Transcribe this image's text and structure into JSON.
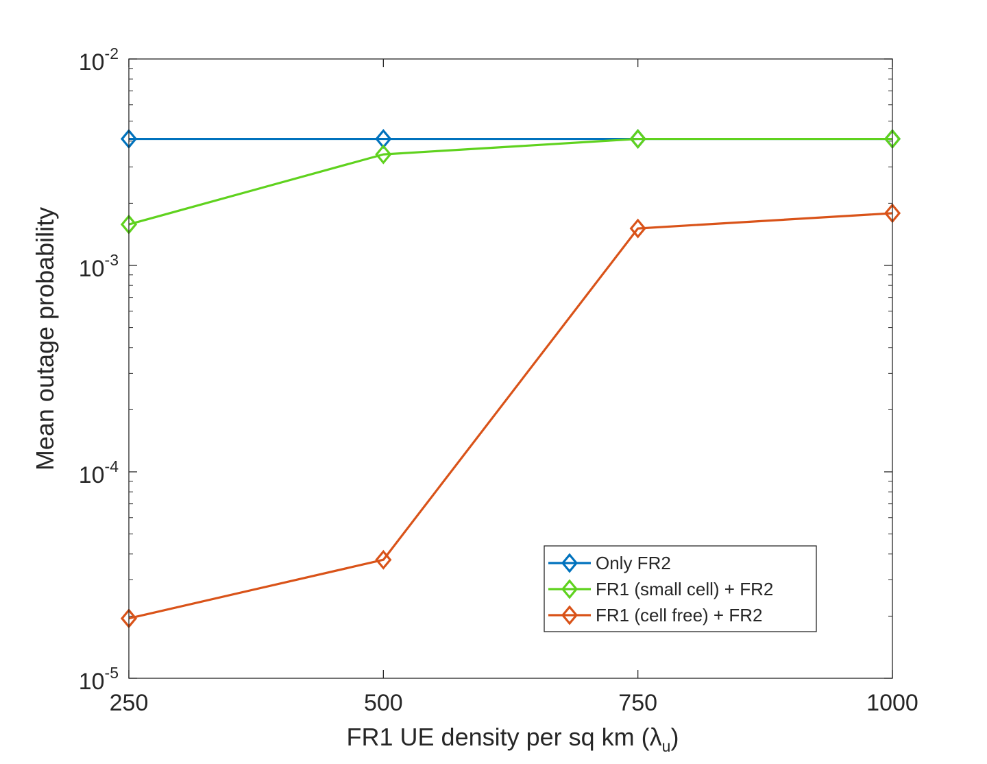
{
  "chart_data": {
    "type": "line",
    "title": "",
    "xlabel": "FR1 UE density per sq km (",
    "xlabel_symbol": "λ",
    "xlabel_subscript": "u",
    "xlabel_close": ")",
    "ylabel": "Mean outage probability",
    "x": [
      250,
      500,
      750,
      1000
    ],
    "x_tick_labels": [
      "250",
      "500",
      "750",
      "1000"
    ],
    "xlim": [
      250,
      1000
    ],
    "y_scale": "log",
    "ylim": [
      1e-05,
      0.01
    ],
    "y_ticks": [
      {
        "base": "10",
        "exponent": "-5",
        "value": 1e-05
      },
      {
        "base": "10",
        "exponent": "-4",
        "value": 0.0001
      },
      {
        "base": "10",
        "exponent": "-3",
        "value": 0.001
      },
      {
        "base": "10",
        "exponent": "-2",
        "value": 0.01
      }
    ],
    "grid": false,
    "box": true,
    "marker": "diamond",
    "legend_location": "bottom-right",
    "series": [
      {
        "name": "Only FR2",
        "color": "#0072BD",
        "values": [
          0.0041,
          0.0041,
          0.0041,
          0.0041
        ]
      },
      {
        "name": "FR1 (small cell) + FR2",
        "color": "#5FD21E",
        "values": [
          0.00158,
          0.00345,
          0.0041,
          0.0041
        ]
      },
      {
        "name": "FR1 (cell free) + FR2",
        "color": "#D95319",
        "values": [
          1.95e-05,
          3.75e-05,
          0.00151,
          0.00179
        ]
      }
    ]
  }
}
